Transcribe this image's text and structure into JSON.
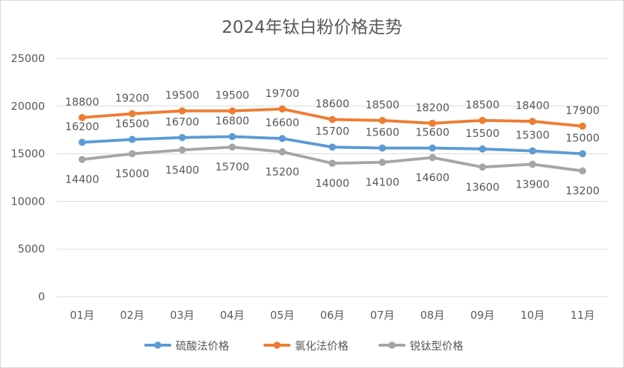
{
  "chart_data": {
    "type": "line",
    "title": "2024年钛白粉价格走势",
    "categories": [
      "01月",
      "02月",
      "03月",
      "04月",
      "05月",
      "06月",
      "07月",
      "08月",
      "09月",
      "10月",
      "11月"
    ],
    "ylim": [
      0,
      25000
    ],
    "yticks": [
      0,
      5000,
      10000,
      15000,
      20000,
      25000
    ],
    "grid": true,
    "legend_position": "bottom",
    "series": [
      {
        "name": "硫酸法价格",
        "color": "#5b9bd5",
        "label_position": "above",
        "values": [
          16200,
          16500,
          16700,
          16800,
          16600,
          15700,
          15600,
          15600,
          15500,
          15300,
          15000
        ]
      },
      {
        "name": "氯化法价格",
        "color": "#ed7d31",
        "label_position": "above",
        "values": [
          18800,
          19200,
          19500,
          19500,
          19700,
          18600,
          18500,
          18200,
          18500,
          18400,
          17900
        ]
      },
      {
        "name": "锐钛型价格",
        "color": "#a5a5a5",
        "label_position": "below",
        "values": [
          14400,
          15000,
          15400,
          15700,
          15200,
          14000,
          14100,
          14600,
          13600,
          13900,
          13200
        ]
      }
    ]
  }
}
